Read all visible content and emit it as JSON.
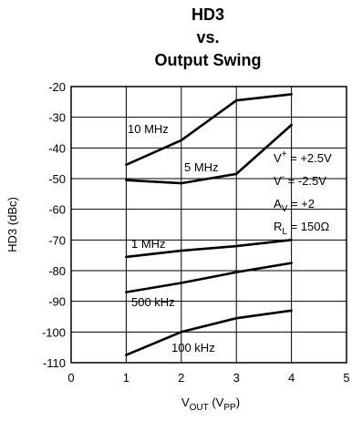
{
  "chart_data": {
    "type": "line",
    "title_lines": [
      "HD3",
      "vs.",
      "Output Swing"
    ],
    "xlabel": {
      "main": "V",
      "sub": "OUT",
      "open": " (V",
      "sub2": "PP",
      "close": ")"
    },
    "ylabel": "HD3 (dBc)",
    "xlim": [
      0,
      5
    ],
    "ylim": [
      -110,
      -20
    ],
    "x_ticks": [
      0,
      1,
      2,
      3,
      4,
      5
    ],
    "y_ticks": [
      -20,
      -30,
      -40,
      -50,
      -60,
      -70,
      -80,
      -90,
      -100,
      -110
    ],
    "grid": true,
    "series": [
      {
        "name": "10 MHz",
        "x": [
          1,
          2,
          3,
          4
        ],
        "y": [
          -45.5,
          -37.5,
          -24.5,
          -22.5
        ]
      },
      {
        "name": "5 MHz",
        "x": [
          1,
          2,
          3,
          4
        ],
        "y": [
          -50.5,
          -51.5,
          -48.5,
          -32.5
        ]
      },
      {
        "name": "1 MHz",
        "x": [
          1,
          2,
          3,
          4
        ],
        "y": [
          -75.5,
          -73.5,
          -72,
          -70
        ]
      },
      {
        "name": "500 kHz",
        "x": [
          1,
          2,
          3,
          4
        ],
        "y": [
          -87,
          -84,
          -80.5,
          -77.5
        ]
      },
      {
        "name": "100 kHz",
        "x": [
          1,
          2,
          3,
          4
        ],
        "y": [
          -107.5,
          -100,
          -95.5,
          -93
        ]
      }
    ],
    "conditions": [
      {
        "main": "V",
        "sup": "+",
        "text": " = +2.5V"
      },
      {
        "main": "V",
        "sup": "-",
        "text": " = -2.5V"
      },
      {
        "main": "A",
        "sub": "V",
        "text": " = +2"
      },
      {
        "main": "R",
        "sub": "L",
        "text": " = 150Ω"
      }
    ]
  }
}
